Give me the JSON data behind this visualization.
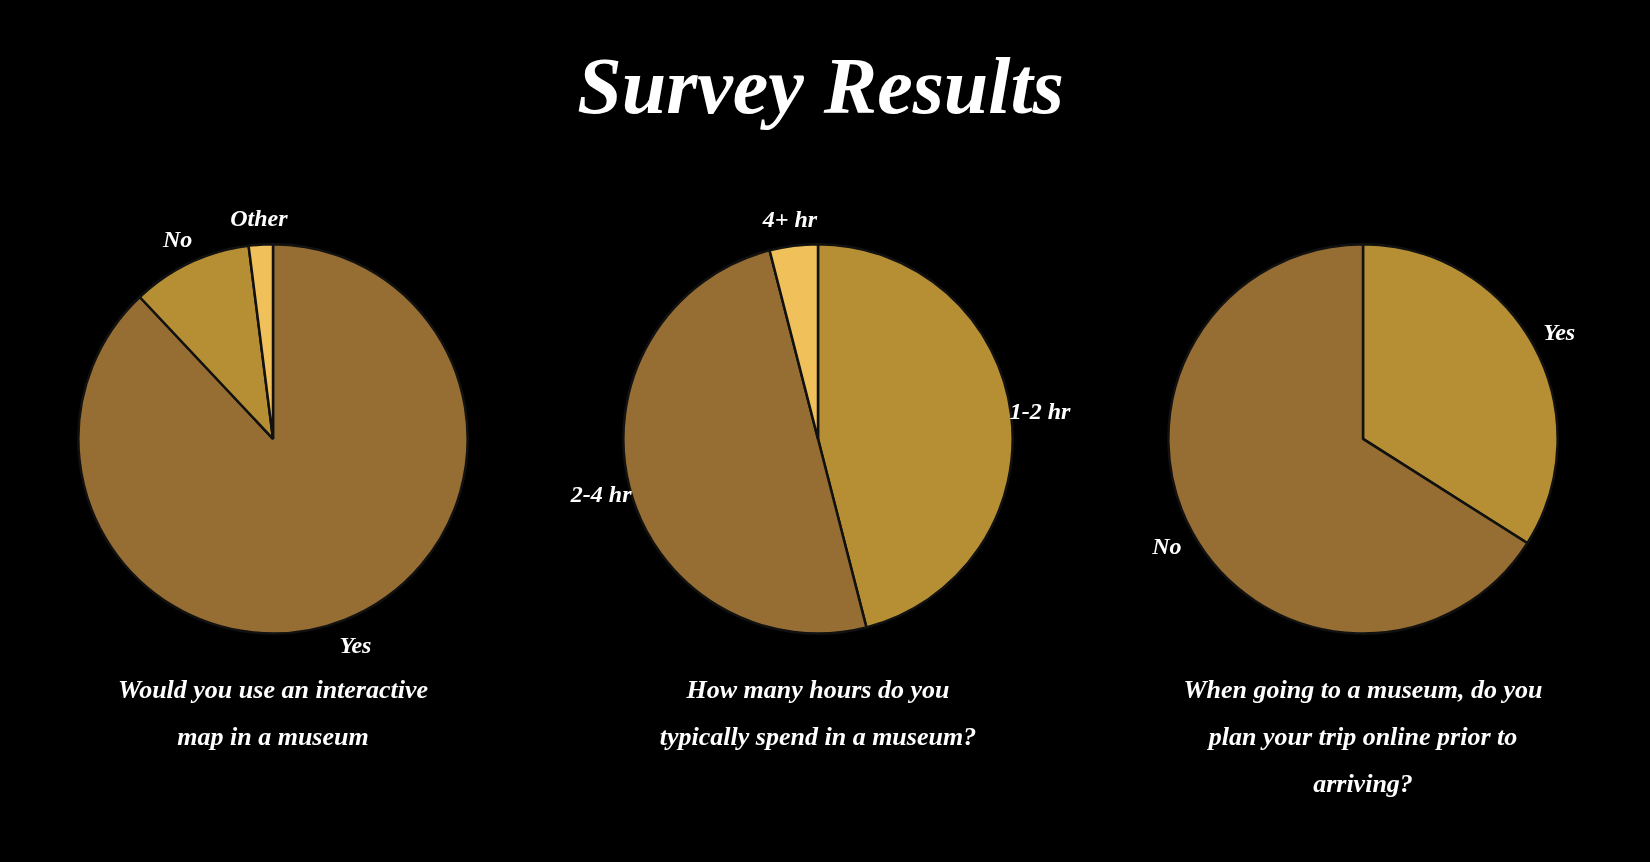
{
  "chart_data": [
    {
      "type": "other",
      "title": "Survey Results"
    },
    {
      "type": "pie",
      "title": "Would you use an interactive map in a museum",
      "categories": [
        "Yes",
        "No",
        "Other"
      ],
      "values": [
        88,
        10,
        2
      ],
      "colors": [
        "#966d32",
        "#b68f35",
        "#f0c05a"
      ]
    },
    {
      "type": "pie",
      "title": "How many hours do you typically spend in a museum?",
      "categories": [
        "1-2 hr",
        "2-4 hr",
        "4+ hr"
      ],
      "values": [
        46,
        50,
        4
      ],
      "colors": [
        "#b68f35",
        "#966d32",
        "#f0c05a"
      ]
    },
    {
      "type": "pie",
      "title": "When going to a museum, do you plan your trip online prior to arriving?",
      "categories": [
        "Yes",
        "No"
      ],
      "values": [
        34,
        66
      ],
      "colors": [
        "#b68f35",
        "#966d32"
      ]
    }
  ]
}
